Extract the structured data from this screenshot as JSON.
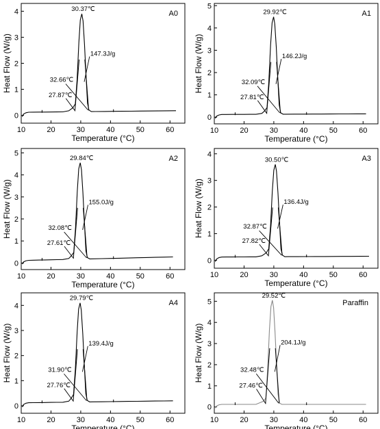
{
  "chart_data": [
    {
      "type": "line",
      "panel_label": "A0",
      "xlabel": "Temperature (°C)",
      "ylabel": "Heat Flow (W/g)",
      "xlim": [
        10,
        65
      ],
      "ylim": [
        -0.3,
        4.3
      ],
      "xticks": [
        10,
        20,
        30,
        40,
        50,
        60
      ],
      "yticks": [
        0,
        1,
        2,
        3,
        4
      ],
      "series_color": "#000000",
      "peak": {
        "x": 30.37,
        "y": 3.9
      },
      "onset": 27.87,
      "end": 32.66,
      "tail_y": 0.18,
      "annotations": {
        "peak_temp": "30.37℃",
        "enthalpy": "147.3J/g",
        "t_end": "32.66℃",
        "t_onset": "27.87℃"
      }
    },
    {
      "type": "line",
      "panel_label": "A1",
      "xlabel": "Temperature (°C)",
      "ylabel": "Heat Flow (W/g)",
      "xlim": [
        10,
        65
      ],
      "ylim": [
        -0.3,
        5.1
      ],
      "xticks": [
        10,
        20,
        30,
        40,
        50,
        60
      ],
      "yticks": [
        0,
        1,
        2,
        3,
        4,
        5
      ],
      "series_color": "#000000",
      "peak": {
        "x": 29.92,
        "y": 4.5
      },
      "onset": 27.81,
      "end": 32.09,
      "tail_y": 0.15,
      "annotations": {
        "peak_temp": "29.92℃",
        "enthalpy": "146.2J/g",
        "t_end": "32.09℃",
        "t_onset": "27.81℃"
      }
    },
    {
      "type": "line",
      "panel_label": "A2",
      "xlabel": "Temperature (°C)",
      "ylabel": "Heat Flow (W/g)",
      "xlim": [
        10,
        65
      ],
      "ylim": [
        -0.3,
        5.2
      ],
      "xticks": [
        10,
        20,
        30,
        40,
        50,
        60
      ],
      "yticks": [
        0,
        1,
        2,
        3,
        4,
        5
      ],
      "series_color": "#000000",
      "peak": {
        "x": 29.84,
        "y": 4.55
      },
      "onset": 27.61,
      "end": 32.08,
      "tail_y": 0.28,
      "annotations": {
        "peak_temp": "29.84℃",
        "enthalpy": "155.0J/g",
        "t_end": "32.08℃",
        "t_onset": "27.61℃"
      }
    },
    {
      "type": "line",
      "panel_label": "A3",
      "xlabel": "Temperature (°C)",
      "ylabel": "Heat Flow (W/g)",
      "xlim": [
        10,
        65
      ],
      "ylim": [
        -0.3,
        4.2
      ],
      "xticks": [
        10,
        20,
        30,
        40,
        50,
        60
      ],
      "yticks": [
        0,
        1,
        2,
        3,
        4
      ],
      "series_color": "#000000",
      "peak": {
        "x": 30.5,
        "y": 3.6
      },
      "onset": 27.82,
      "end": 32.87,
      "tail_y": 0.15,
      "annotations": {
        "peak_temp": "30.50℃",
        "enthalpy": "136.4J/g",
        "t_end": "32.87℃",
        "t_onset": "27.82℃"
      }
    },
    {
      "type": "line",
      "panel_label": "A4",
      "xlabel": "Temperature (°C)",
      "ylabel": "Heat Flow (W/g)",
      "xlim": [
        10,
        65
      ],
      "ylim": [
        -0.3,
        4.5
      ],
      "xticks": [
        10,
        20,
        30,
        40,
        50,
        60
      ],
      "yticks": [
        0,
        1,
        2,
        3,
        4
      ],
      "series_color": "#000000",
      "peak": {
        "x": 29.79,
        "y": 4.1
      },
      "onset": 27.76,
      "end": 31.9,
      "tail_y": 0.2,
      "annotations": {
        "peak_temp": "29.79℃",
        "enthalpy": "139.4J/g",
        "t_end": "31.90℃",
        "t_onset": "27.76℃"
      }
    },
    {
      "type": "line",
      "panel_label": "Paraffin",
      "xlabel": "Temperature (°C)",
      "ylabel": "Heat Flow (W/g)",
      "xlim": [
        10,
        65
      ],
      "ylim": [
        -0.3,
        5.4
      ],
      "xticks": [
        10,
        20,
        30,
        40,
        50,
        60
      ],
      "yticks": [
        0,
        1,
        2,
        3,
        4,
        5
      ],
      "series_color": "#888888",
      "peak": {
        "x": 29.52,
        "y": 5.05
      },
      "onset": 27.46,
      "end": 32.48,
      "tail_y": 0.12,
      "annotations": {
        "peak_temp": "29.52℃",
        "enthalpy": "204.1J/g",
        "t_end": "32.48℃",
        "t_onset": "27.46℃"
      }
    }
  ]
}
